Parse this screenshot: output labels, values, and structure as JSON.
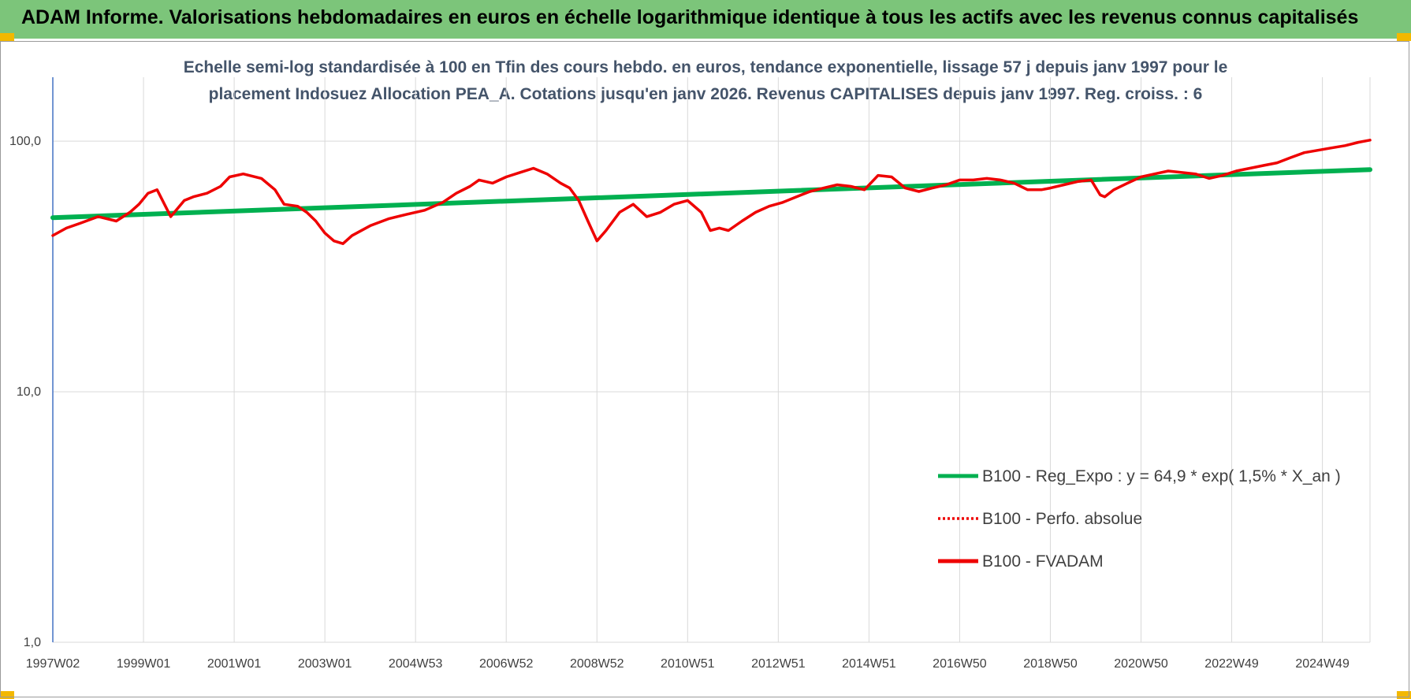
{
  "banner": {
    "title": "ADAM Informe. Valorisations hebdomadaires en euros en échelle logarithmique identique à tous les actifs avec les revenus connus capitalisés"
  },
  "colors": {
    "banner": "#7cc57a",
    "corner": "#f3b800",
    "trend": "#00b050",
    "fvadam": "#ee0000",
    "title": "#44546a",
    "grid": "#d9d9d9",
    "axis": "#4472c4"
  },
  "chart_data": {
    "type": "line",
    "title_line1": "Echelle semi-log standardisée à 100 en Tfin des cours hebdo. en euros, tendance exponentielle, lissage 57 j depuis janv 1997 pour le",
    "title_line2": "placement Indosuez Allocation PEA_A. Cotations jusqu'en janv 2026. Revenus CAPITALISES depuis janv 1997. Reg. croiss. : 6",
    "y_scale": "log",
    "ylim": [
      1,
      180
    ],
    "y_ticks": [
      1,
      10,
      100
    ],
    "y_tick_labels": [
      "1,0",
      "10,0",
      "100,0"
    ],
    "xlim": [
      1997.0,
      2026.05
    ],
    "x_ticks": [
      1997.0,
      1999.0,
      2001.0,
      2003.0,
      2005.0,
      2007.0,
      2009.0,
      2011.0,
      2013.0,
      2015.0,
      2017.0,
      2019.0,
      2021.0,
      2023.0,
      2025.0
    ],
    "x_tick_labels": [
      "1997W02",
      "1999W01",
      "2001W01",
      "2003W01",
      "2004W53",
      "2006W52",
      "2008W52",
      "2010W51",
      "2012W51",
      "2014W51",
      "2016W50",
      "2018W50",
      "2020W50",
      "2022W49",
      "2024W49"
    ],
    "grid": true,
    "legend_position": "right-middle",
    "series": [
      {
        "name": "B100 - Reg_Expo : y = 64,9 * exp( 1,5% *  X_an )",
        "style": "solid-thick",
        "color": "#00b050",
        "x": [
          1997.0,
          2026.05
        ],
        "y": [
          49.5,
          77.0
        ]
      },
      {
        "name": "B100 - Perfo. absolue",
        "style": "dotted",
        "color": "#ee0000",
        "x": [],
        "y": []
      },
      {
        "name": "B100 - FVADAM",
        "style": "solid-thick",
        "color": "#ee0000",
        "x": [
          1997.0,
          1997.3,
          1997.6,
          1998.0,
          1998.4,
          1998.7,
          1998.9,
          1999.1,
          1999.3,
          1999.6,
          1999.9,
          2000.1,
          2000.4,
          2000.7,
          2000.9,
          2001.2,
          2001.6,
          2001.9,
          2002.1,
          2002.4,
          2002.6,
          2002.8,
          2003.0,
          2003.2,
          2003.4,
          2003.6,
          2004.0,
          2004.4,
          2004.8,
          2005.2,
          2005.6,
          2005.9,
          2006.2,
          2006.4,
          2006.7,
          2007.0,
          2007.3,
          2007.6,
          2007.9,
          2008.2,
          2008.4,
          2008.6,
          2008.8,
          2009.0,
          2009.2,
          2009.5,
          2009.8,
          2010.1,
          2010.4,
          2010.7,
          2011.0,
          2011.3,
          2011.5,
          2011.7,
          2011.9,
          2012.2,
          2012.5,
          2012.8,
          2013.1,
          2013.4,
          2013.7,
          2014.0,
          2014.3,
          2014.6,
          2014.9,
          2015.2,
          2015.5,
          2015.8,
          2016.1,
          2016.4,
          2016.7,
          2017.0,
          2017.3,
          2017.6,
          2017.9,
          2018.2,
          2018.5,
          2018.8,
          2019.0,
          2019.3,
          2019.6,
          2019.9,
          2020.1,
          2020.2,
          2020.4,
          2020.7,
          2021.0,
          2021.3,
          2021.6,
          2021.9,
          2022.2,
          2022.5,
          2022.8,
          2023.1,
          2023.4,
          2023.7,
          2024.0,
          2024.3,
          2024.6,
          2024.9,
          2025.2,
          2025.5,
          2025.8,
          2026.05
        ],
        "y": [
          42,
          45,
          47,
          50,
          48,
          52,
          56,
          62,
          64,
          50,
          58,
          60,
          62,
          66,
          72,
          74,
          71,
          64,
          56,
          55,
          52,
          48,
          43,
          40,
          39,
          42,
          46,
          49,
          51,
          53,
          57,
          62,
          66,
          70,
          68,
          72,
          75,
          78,
          74,
          68,
          65,
          58,
          48,
          40,
          44,
          52,
          56,
          50,
          52,
          56,
          58,
          52,
          44,
          45,
          44,
          48,
          52,
          55,
          57,
          60,
          63,
          65,
          67,
          66,
          64,
          73,
          72,
          65,
          63,
          65,
          67,
          70,
          70,
          71,
          70,
          68,
          64,
          64,
          65,
          67,
          69,
          70,
          61,
          60,
          64,
          68,
          72,
          74,
          76,
          75,
          74,
          71,
          73,
          76,
          78,
          80,
          82,
          86,
          90,
          92,
          94,
          96,
          99,
          101
        ]
      }
    ]
  }
}
